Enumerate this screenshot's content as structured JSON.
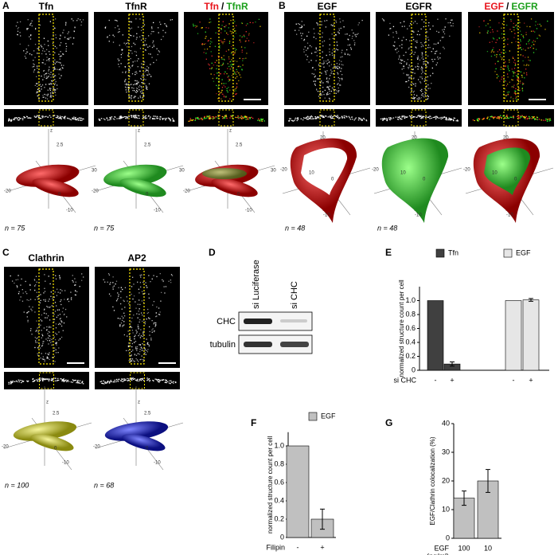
{
  "panels": {
    "A": {
      "label": "A",
      "titles": [
        "Tfn",
        "TfnR"
      ],
      "merge": [
        "Tfn",
        "/",
        "TfnR"
      ],
      "n": [
        "n = 75",
        "n = 75",
        ""
      ]
    },
    "B": {
      "label": "B",
      "titles": [
        "EGF",
        "EGFR"
      ],
      "merge": [
        "EGF",
        "/",
        "EGFR"
      ],
      "n": [
        "n = 48",
        "n = 48"
      ]
    },
    "C": {
      "label": "C",
      "titles": [
        "Clathrin",
        "AP2"
      ],
      "n": [
        "n = 100",
        "n = 68"
      ]
    },
    "D": {
      "label": "D",
      "lanes": [
        "si Luciferase",
        "si CHC"
      ],
      "rows": [
        "CHC",
        "tubulin"
      ]
    },
    "E": {
      "label": "E"
    },
    "F": {
      "label": "F"
    },
    "G": {
      "label": "G"
    }
  },
  "axes_3d": {
    "A": [
      "z",
      "2.5",
      "-20",
      "30",
      "-10",
      "0"
    ],
    "B": [
      "20",
      "-20",
      "10",
      "0",
      "-10"
    ],
    "C": [
      "z",
      "2.5",
      "-20",
      "-10",
      "0"
    ]
  },
  "chart_data": [
    {
      "type": "bar",
      "y_label": "normalized structure count per cell",
      "x_label": "si CHC",
      "categories": [
        "-",
        "+",
        "-",
        "+"
      ],
      "series": [
        {
          "name": "Tfn",
          "color": "#404040",
          "values": [
            1.0,
            0.09,
            null,
            null
          ],
          "errors": [
            null,
            0.03,
            null,
            null
          ]
        },
        {
          "name": "EGF",
          "color": "#e6e6e6",
          "values": [
            null,
            null,
            1.0,
            1.01
          ],
          "errors": [
            null,
            null,
            null,
            0.02
          ]
        }
      ],
      "ylim": [
        0,
        1.2
      ],
      "yticks": [
        0,
        0.2,
        0.4,
        0.6,
        0.8,
        {
          "value": 1,
          "label": "1.0"
        }
      ]
    },
    {
      "type": "bar",
      "y_label": "normalized structure count per cell",
      "x_label": "Filipin",
      "categories": [
        "-",
        "+"
      ],
      "series": [
        {
          "name": "EGF",
          "color": "#c0c0c0",
          "values": [
            1.0,
            0.2
          ],
          "errors": [
            null,
            0.11
          ]
        }
      ],
      "ylim": [
        0,
        1.15
      ],
      "yticks": [
        0,
        0.2,
        0.4,
        0.6,
        0.8,
        {
          "value": 1,
          "label": "1.0"
        }
      ]
    },
    {
      "type": "bar",
      "y_label": "EGF/Clathrin colocalization (%)",
      "x_label_lines": [
        "EGF",
        "(ng/ml)"
      ],
      "categories": [
        "100",
        "10"
      ],
      "series": [
        {
          "color": "#c0c0c0",
          "values": [
            14,
            20
          ],
          "errors": [
            2.5,
            4
          ]
        }
      ],
      "ylim": [
        0,
        40
      ],
      "yticks": [
        0,
        10,
        20,
        30,
        40
      ]
    }
  ]
}
